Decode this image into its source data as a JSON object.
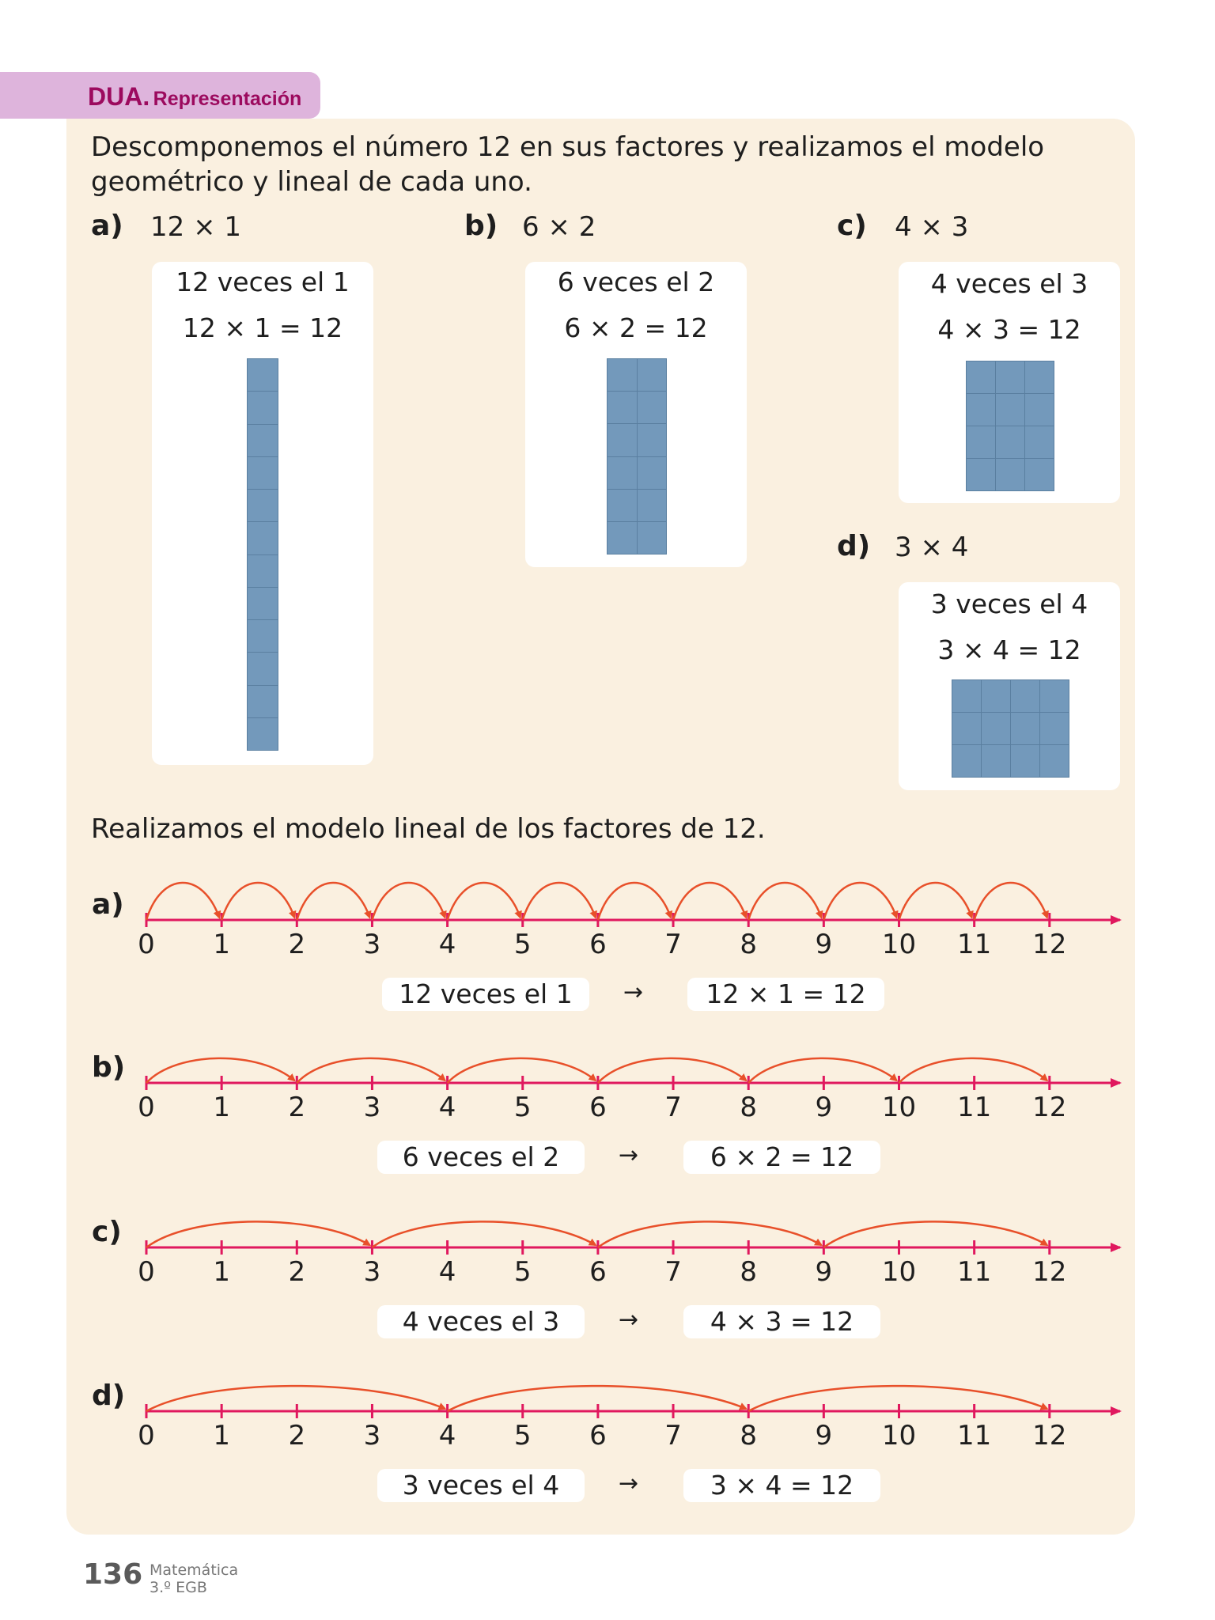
{
  "header": {
    "tag_bold": "DUA.",
    "tag_text": "Representación"
  },
  "intro": {
    "line1": "Descomponemos el número 12 en sus factores y realizamos el modelo",
    "line2": "geométrico y lineal de cada uno."
  },
  "geometric": [
    {
      "label": "a)",
      "expr": "12 × 1",
      "caption": "12 veces el 1",
      "equation": "12 × 1 = 12",
      "rows": 12,
      "cols": 1
    },
    {
      "label": "b)",
      "expr": "6 × 2",
      "caption": "6 veces el 2",
      "equation": "6 × 2 = 12",
      "rows": 6,
      "cols": 2
    },
    {
      "label": "c)",
      "expr": "4 × 3",
      "caption": "4 veces el 3",
      "equation": "4 × 3 = 12",
      "rows": 4,
      "cols": 3
    },
    {
      "label": "d)",
      "expr": "3 × 4",
      "caption": "3 veces el 4",
      "equation": "3 × 4 = 12",
      "rows": 3,
      "cols": 4
    }
  ],
  "linear_title": "Realizamos el modelo lineal de los factores de 12.",
  "ticks": [
    "0",
    "1",
    "2",
    "3",
    "4",
    "5",
    "6",
    "7",
    "8",
    "9",
    "10",
    "11",
    "12"
  ],
  "linear": [
    {
      "label": "a)",
      "step": 1,
      "caption": "12 veces el 1",
      "equation": "12 × 1 = 12"
    },
    {
      "label": "b)",
      "step": 2,
      "caption": "6 veces el 2",
      "equation": "6 × 2 = 12"
    },
    {
      "label": "c)",
      "step": 3,
      "caption": "4 veces el 3",
      "equation": "4 × 3 = 12"
    },
    {
      "label": "d)",
      "step": 4,
      "caption": "3 veces el 4",
      "equation": "3 × 4 = 12"
    }
  ],
  "arrow_symbol": "→",
  "colors": {
    "line": "#e0185e",
    "jump": "#e8502a",
    "block": "#7399bb"
  },
  "footer": {
    "page": "136",
    "subject": "Matemática",
    "grade": "3.º EGB"
  }
}
